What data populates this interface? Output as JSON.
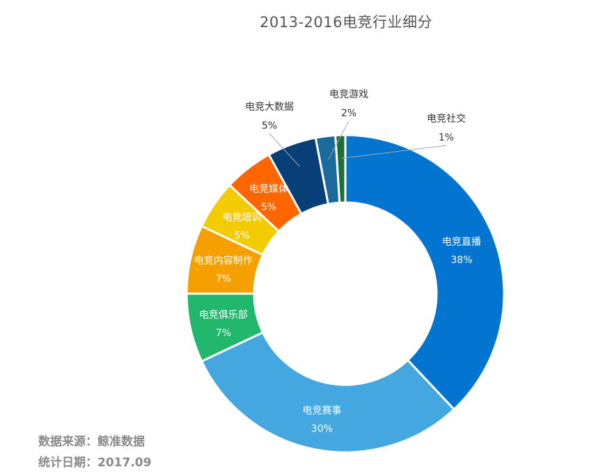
{
  "chart_data": {
    "type": "pie",
    "title": "2013-2016电竞行业细分",
    "categories": [
      "电竞直播",
      "电竞赛事",
      "电竞俱乐部",
      "电竞内容制作",
      "电竞培训",
      "电竞媒体",
      "电竞大数据",
      "电竞游戏",
      "电竞社交"
    ],
    "values": [
      38,
      30,
      7,
      7,
      5,
      5,
      5,
      2,
      1
    ],
    "value_labels": [
      "38%",
      "30%",
      "7%",
      "7%",
      "5%",
      "5%",
      "5%",
      "2%",
      "1%"
    ],
    "colors": [
      "#0474d1",
      "#45a7e0",
      "#21b86d",
      "#f5a000",
      "#f2cb00",
      "#ff6600",
      "#083f77",
      "#1a6a9b",
      "#1e6e3a"
    ],
    "donut": true,
    "label_position": [
      "inside",
      "inside",
      "inside",
      "inside",
      "inside",
      "inside",
      "outside",
      "outside",
      "outside"
    ]
  },
  "footer": {
    "source": "数据来源：鲸准数据",
    "date": "统计日期：2017.09"
  }
}
